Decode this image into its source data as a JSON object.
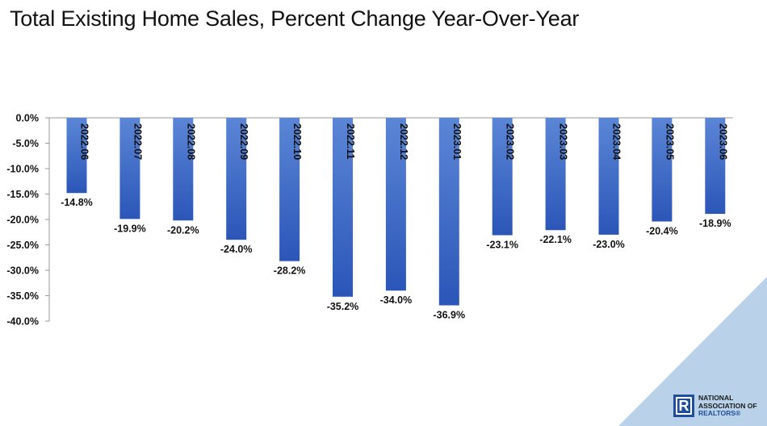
{
  "title": "Total Existing Home Sales, Percent Change Year-Over-Year",
  "logo": {
    "mark": "R",
    "line1": "NATIONAL",
    "line2": "ASSOCIATION OF",
    "line3": "REALTORS®"
  },
  "colors": {
    "bar_top": "#5b86d6",
    "bar_bottom": "#2b56b8",
    "axis": "#9a9a9a",
    "corner": "#b9d2ea"
  },
  "chart_data": {
    "type": "bar",
    "title": "Total Existing Home Sales, Percent Change Year-Over-Year",
    "categories": [
      "2022.06",
      "2022.07",
      "2022.08",
      "2022.09",
      "2022.10",
      "2022.11",
      "2022.12",
      "2023.01",
      "2023.02",
      "2023.03",
      "2023.04",
      "2023.05",
      "2023.06"
    ],
    "values": [
      -14.8,
      -19.9,
      -20.2,
      -24.0,
      -28.2,
      -35.2,
      -34.0,
      -36.9,
      -23.1,
      -22.1,
      -23.0,
      -20.4,
      -18.9
    ],
    "value_labels": [
      "-14.8%",
      "-19.9%",
      "-20.2%",
      "-24.0%",
      "-28.2%",
      "-35.2%",
      "-34.0%",
      "-36.9%",
      "-23.1%",
      "-22.1%",
      "-23.0%",
      "-20.4%",
      "-18.9%"
    ],
    "y_ticks": [
      "0.0%",
      "-5.0%",
      "-10.0%",
      "-15.0%",
      "-20.0%",
      "-25.0%",
      "-30.0%",
      "-35.0%",
      "-40.0%"
    ],
    "ylim": [
      -40,
      0
    ],
    "xlabel": "",
    "ylabel": "",
    "grid": false,
    "legend": "none"
  }
}
